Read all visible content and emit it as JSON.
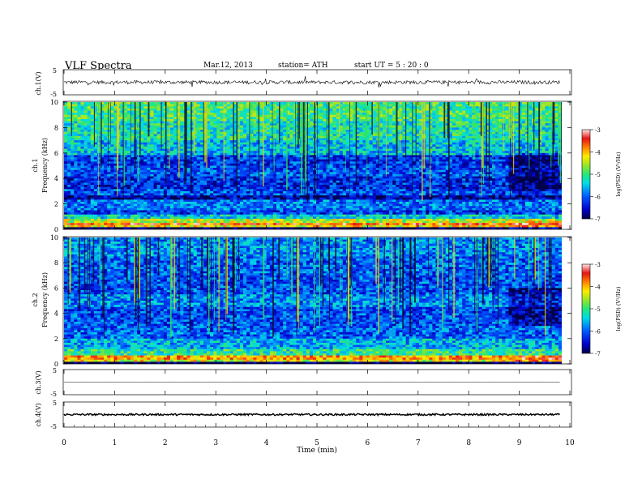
{
  "header": {
    "title": "VLF  Spectra",
    "date": "Mar.12, 2013",
    "station": "station= ATH",
    "start": "start  UT  =    5  : 20 : 0"
  },
  "chart_data": [
    {
      "type": "line",
      "name": "ch1-waveform",
      "ylabel": "ch.1(V)",
      "ylim": [
        -5,
        5
      ],
      "yticks": [
        "5",
        "-5"
      ],
      "xlim": [
        0,
        9.8
      ],
      "baseline": 0,
      "amplitude": 0.7
    },
    {
      "type": "heatmap",
      "name": "ch1-spectrogram",
      "ylabel": "ch.1\nFrequency  (kHz)",
      "ylim": [
        0,
        10
      ],
      "yticks": [
        "0",
        "2",
        "4",
        "6",
        "8",
        "10"
      ],
      "xlim": [
        0,
        9.8
      ],
      "bands": [
        {
          "f": [
            0,
            0.15
          ],
          "v": -7
        },
        {
          "f": [
            0.15,
            0.3
          ],
          "v": -4.2
        },
        {
          "f": [
            0.3,
            0.5
          ],
          "v": -3.6
        },
        {
          "f": [
            0.5,
            0.8
          ],
          "v": -4.5
        },
        {
          "f": [
            0.8,
            1.1
          ],
          "v": -5.4
        },
        {
          "f": [
            1.1,
            1.5
          ],
          "v": -6.2
        },
        {
          "f": [
            1.5,
            2.3
          ],
          "v": -5.9
        },
        {
          "f": [
            2.3,
            2.6
          ],
          "v": -6.7
        },
        {
          "f": [
            2.6,
            3.2
          ],
          "v": -6.1
        },
        {
          "f": [
            3.2,
            4.1
          ],
          "v": -6.3
        },
        {
          "f": [
            4.1,
            5.0
          ],
          "v": -6.1
        },
        {
          "f": [
            5.0,
            5.9
          ],
          "v": -6.2
        },
        {
          "f": [
            5.9,
            7.0
          ],
          "v": -5.5
        },
        {
          "f": [
            7.0,
            8.5
          ],
          "v": -5.2
        },
        {
          "f": [
            8.5,
            10
          ],
          "v": -5.0
        }
      ],
      "colorbar": {
        "label": "log(PSD) (V²/Hz)",
        "range": [
          -7,
          -3
        ],
        "ticks": [
          "-3",
          "-4",
          "-5",
          "-6",
          "-7"
        ]
      }
    },
    {
      "type": "heatmap",
      "name": "ch2-spectrogram",
      "ylabel": "ch.2\nFrequency  (kHz)",
      "ylim": [
        0,
        10
      ],
      "yticks": [
        "0",
        "2",
        "4",
        "6",
        "8",
        "10"
      ],
      "xlim": [
        0,
        9.8
      ],
      "bands": [
        {
          "f": [
            0,
            0.15
          ],
          "v": -7
        },
        {
          "f": [
            0.15,
            0.4
          ],
          "v": -4.3
        },
        {
          "f": [
            0.4,
            0.7
          ],
          "v": -3.9
        },
        {
          "f": [
            0.7,
            1.2
          ],
          "v": -5.1
        },
        {
          "f": [
            1.2,
            2.0
          ],
          "v": -5.6
        },
        {
          "f": [
            2.0,
            3.0
          ],
          "v": -6.0
        },
        {
          "f": [
            3.0,
            4.5
          ],
          "v": -6.1
        },
        {
          "f": [
            4.5,
            5.5
          ],
          "v": -5.8
        },
        {
          "f": [
            5.5,
            7.0
          ],
          "v": -6.1
        },
        {
          "f": [
            7.0,
            8.5
          ],
          "v": -6.0
        },
        {
          "f": [
            8.5,
            10
          ],
          "v": -5.8
        }
      ],
      "colorbar": {
        "label": "log(PSD) (V²/Hz)",
        "range": [
          -7,
          -3
        ],
        "ticks": [
          "-3",
          "-4",
          "-5",
          "-6",
          "-7"
        ]
      }
    },
    {
      "type": "line",
      "name": "ch3-waveform",
      "ylabel": "ch.3(V)",
      "ylim": [
        -5,
        5
      ],
      "yticks": [
        "5",
        "-5"
      ],
      "xlim": [
        0,
        9.8
      ],
      "baseline": 0,
      "amplitude": 0.05
    },
    {
      "type": "line",
      "name": "ch4-waveform",
      "ylabel": "ch.4(V)",
      "ylim": [
        -5,
        5
      ],
      "yticks": [
        "5",
        "-5"
      ],
      "xlim": [
        0,
        9.8
      ],
      "baseline": 0,
      "amplitude": 0.35
    }
  ],
  "xaxis": {
    "label": "Time  (min)",
    "range": [
      0,
      10
    ],
    "ticks": [
      "0",
      "1",
      "2",
      "3",
      "4",
      "5",
      "6",
      "7",
      "8",
      "9",
      "10"
    ]
  }
}
